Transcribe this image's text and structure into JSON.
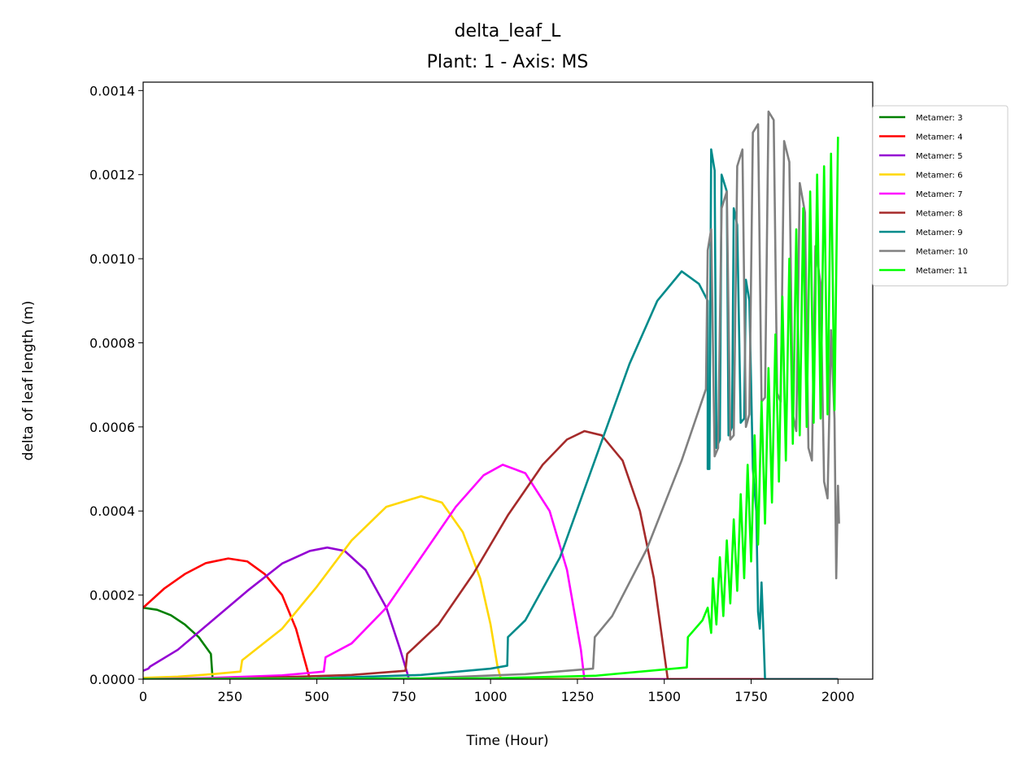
{
  "chart_data": {
    "type": "line",
    "title": "delta_leaf_L",
    "subtitle": "Plant: 1 - Axis: MS",
    "xlabel": "Time (Hour)",
    "ylabel": "delta of leaf length (m)",
    "xlim": [
      0,
      2100
    ],
    "ylim": [
      0,
      0.00142
    ],
    "xticks": [
      0,
      250,
      500,
      750,
      1000,
      1250,
      1500,
      1750,
      2000
    ],
    "xtick_labels": [
      "0",
      "250",
      "500",
      "750",
      "1000",
      "1250",
      "1500",
      "1750",
      "2000"
    ],
    "yticks": [
      0,
      0.0002,
      0.0004,
      0.0006,
      0.0008,
      0.001,
      0.0012,
      0.0014
    ],
    "ytick_labels": [
      "0.0000",
      "0.0002",
      "0.0004",
      "0.0006",
      "0.0008",
      "0.0010",
      "0.0012",
      "0.0014"
    ],
    "grid": false,
    "legend_position": "right-outside-top",
    "series": [
      {
        "name": "Metamer: 3",
        "color": "#008000",
        "points": [
          [
            0,
            0.00017
          ],
          [
            40,
            0.000165
          ],
          [
            80,
            0.000152
          ],
          [
            120,
            0.00013
          ],
          [
            160,
            0.0001
          ],
          [
            195,
            6e-05
          ],
          [
            200,
            0.0
          ],
          [
            2000,
            0.0
          ]
        ]
      },
      {
        "name": "Metamer: 4",
        "color": "#ff0000",
        "points": [
          [
            0,
            0.00017
          ],
          [
            60,
            0.000215
          ],
          [
            120,
            0.00025
          ],
          [
            180,
            0.000276
          ],
          [
            245,
            0.000287
          ],
          [
            300,
            0.00028
          ],
          [
            350,
            0.00025
          ],
          [
            400,
            0.0002
          ],
          [
            440,
            0.00012
          ],
          [
            470,
            3e-05
          ],
          [
            480,
            0.0
          ],
          [
            2000,
            0.0
          ]
        ]
      },
      {
        "name": "Metamer: 5",
        "color": "#9400d3",
        "points": [
          [
            0,
            2e-05
          ],
          [
            15,
            2.5e-05
          ],
          [
            20,
            3e-05
          ],
          [
            100,
            7e-05
          ],
          [
            200,
            0.00014
          ],
          [
            300,
            0.00021
          ],
          [
            400,
            0.000275
          ],
          [
            480,
            0.000305
          ],
          [
            530,
            0.000313
          ],
          [
            580,
            0.000305
          ],
          [
            640,
            0.00026
          ],
          [
            700,
            0.00017
          ],
          [
            740,
            7e-05
          ],
          [
            760,
            1.5e-05
          ],
          [
            765,
            0.0
          ],
          [
            2000,
            0.0
          ]
        ]
      },
      {
        "name": "Metamer: 6",
        "color": "#ffd700",
        "points": [
          [
            0,
            3e-06
          ],
          [
            100,
            6e-06
          ],
          [
            200,
            1.2e-05
          ],
          [
            280,
            1.8e-05
          ],
          [
            285,
            4.5e-05
          ],
          [
            400,
            0.00012
          ],
          [
            500,
            0.00022
          ],
          [
            600,
            0.00033
          ],
          [
            700,
            0.00041
          ],
          [
            800,
            0.000435
          ],
          [
            860,
            0.00042
          ],
          [
            920,
            0.00035
          ],
          [
            970,
            0.00024
          ],
          [
            1000,
            0.00013
          ],
          [
            1020,
            3e-05
          ],
          [
            1030,
            0.0
          ],
          [
            2000,
            0.0
          ]
        ]
      },
      {
        "name": "Metamer: 7",
        "color": "#ff00ff",
        "points": [
          [
            0,
            5e-07
          ],
          [
            200,
            3e-06
          ],
          [
            400,
            9e-06
          ],
          [
            520,
            1.8e-05
          ],
          [
            525,
            5.2e-05
          ],
          [
            600,
            8.5e-05
          ],
          [
            700,
            0.00017
          ],
          [
            800,
            0.00029
          ],
          [
            900,
            0.00041
          ],
          [
            980,
            0.000485
          ],
          [
            1035,
            0.00051
          ],
          [
            1100,
            0.00049
          ],
          [
            1170,
            0.0004
          ],
          [
            1220,
            0.00026
          ],
          [
            1260,
            7e-05
          ],
          [
            1270,
            0.0
          ],
          [
            2000,
            0.0
          ]
        ]
      },
      {
        "name": "Metamer: 8",
        "color": "#a52a2a",
        "points": [
          [
            0,
            0.0
          ],
          [
            300,
            2e-06
          ],
          [
            600,
            1e-05
          ],
          [
            755,
            2e-05
          ],
          [
            760,
            6e-05
          ],
          [
            850,
            0.00013
          ],
          [
            950,
            0.00025
          ],
          [
            1050,
            0.00039
          ],
          [
            1150,
            0.00051
          ],
          [
            1220,
            0.00057
          ],
          [
            1270,
            0.00059
          ],
          [
            1320,
            0.00058
          ],
          [
            1380,
            0.00052
          ],
          [
            1430,
            0.0004
          ],
          [
            1470,
            0.00024
          ],
          [
            1500,
            6e-05
          ],
          [
            1510,
            0.0
          ],
          [
            2000,
            0.0
          ]
        ]
      },
      {
        "name": "Metamer: 9",
        "color": "#008b8b",
        "points": [
          [
            0,
            0.0
          ],
          [
            500,
            2e-06
          ],
          [
            800,
            1e-05
          ],
          [
            1000,
            2.5e-05
          ],
          [
            1048,
            3.2e-05
          ],
          [
            1050,
            0.0001
          ],
          [
            1100,
            0.00014
          ],
          [
            1200,
            0.00029
          ],
          [
            1300,
            0.00052
          ],
          [
            1400,
            0.00075
          ],
          [
            1480,
            0.0009
          ],
          [
            1550,
            0.00097
          ],
          [
            1600,
            0.00094
          ],
          [
            1625,
            0.0009
          ],
          [
            1625,
            0.0005
          ],
          [
            1630,
            0.0005
          ],
          [
            1635,
            0.00126
          ],
          [
            1645,
            0.00121
          ],
          [
            1650,
            0.00055
          ],
          [
            1660,
            0.00057
          ],
          [
            1665,
            0.0012
          ],
          [
            1680,
            0.00116
          ],
          [
            1685,
            0.00058
          ],
          [
            1695,
            0.0006
          ],
          [
            1700,
            0.00112
          ],
          [
            1710,
            0.00108
          ],
          [
            1720,
            0.00061
          ],
          [
            1730,
            0.00062
          ],
          [
            1735,
            0.00095
          ],
          [
            1745,
            0.0009
          ],
          [
            1755,
            0.0005
          ],
          [
            1765,
            0.0004
          ],
          [
            1770,
            0.00016
          ],
          [
            1775,
            0.00012
          ],
          [
            1780,
            0.00023
          ],
          [
            1785,
            0.00012
          ],
          [
            1790,
            0.0
          ],
          [
            2000,
            0.0
          ]
        ]
      },
      {
        "name": "Metamer: 10",
        "color": "#808080",
        "points": [
          [
            0,
            0.0
          ],
          [
            800,
            2e-06
          ],
          [
            1100,
            1.2e-05
          ],
          [
            1295,
            2.5e-05
          ],
          [
            1300,
            0.0001
          ],
          [
            1350,
            0.00015
          ],
          [
            1450,
            0.00031
          ],
          [
            1550,
            0.00052
          ],
          [
            1620,
            0.00069
          ],
          [
            1625,
            0.00102
          ],
          [
            1635,
            0.00107
          ],
          [
            1645,
            0.00053
          ],
          [
            1655,
            0.00055
          ],
          [
            1665,
            0.00112
          ],
          [
            1680,
            0.00116
          ],
          [
            1690,
            0.00057
          ],
          [
            1700,
            0.00058
          ],
          [
            1710,
            0.00122
          ],
          [
            1725,
            0.00126
          ],
          [
            1735,
            0.0006
          ],
          [
            1745,
            0.00063
          ],
          [
            1755,
            0.0013
          ],
          [
            1770,
            0.00132
          ],
          [
            1780,
            0.00066
          ],
          [
            1790,
            0.00067
          ],
          [
            1800,
            0.00135
          ],
          [
            1815,
            0.00133
          ],
          [
            1825,
            0.00068
          ],
          [
            1835,
            0.00066
          ],
          [
            1845,
            0.00128
          ],
          [
            1860,
            0.00123
          ],
          [
            1870,
            0.00063
          ],
          [
            1880,
            0.00059
          ],
          [
            1890,
            0.00118
          ],
          [
            1905,
            0.00111
          ],
          [
            1915,
            0.00055
          ],
          [
            1925,
            0.00052
          ],
          [
            1935,
            0.00103
          ],
          [
            1950,
            0.00094
          ],
          [
            1960,
            0.00047
          ],
          [
            1970,
            0.00043
          ],
          [
            1980,
            0.00083
          ],
          [
            1990,
            0.00062
          ],
          [
            1995,
            0.00024
          ],
          [
            2000,
            0.00046
          ],
          [
            2003,
            0.00037
          ]
        ]
      },
      {
        "name": "Metamer: 11",
        "color": "#00ff00",
        "points": [
          [
            0,
            0.0
          ],
          [
            1000,
            2e-06
          ],
          [
            1300,
            8e-06
          ],
          [
            1565,
            2.8e-05
          ],
          [
            1568,
            0.0001
          ],
          [
            1610,
            0.00014
          ],
          [
            1625,
            0.00017
          ],
          [
            1635,
            0.00011
          ],
          [
            1640,
            0.00024
          ],
          [
            1650,
            0.00013
          ],
          [
            1660,
            0.00029
          ],
          [
            1670,
            0.00015
          ],
          [
            1680,
            0.00033
          ],
          [
            1690,
            0.00018
          ],
          [
            1700,
            0.00038
          ],
          [
            1710,
            0.00021
          ],
          [
            1720,
            0.00044
          ],
          [
            1730,
            0.00024
          ],
          [
            1740,
            0.00051
          ],
          [
            1750,
            0.00028
          ],
          [
            1760,
            0.00058
          ],
          [
            1770,
            0.00032
          ],
          [
            1780,
            0.00066
          ],
          [
            1790,
            0.00037
          ],
          [
            1800,
            0.00074
          ],
          [
            1810,
            0.00042
          ],
          [
            1820,
            0.00082
          ],
          [
            1830,
            0.00047
          ],
          [
            1840,
            0.00091
          ],
          [
            1850,
            0.00052
          ],
          [
            1860,
            0.001
          ],
          [
            1870,
            0.00056
          ],
          [
            1880,
            0.00107
          ],
          [
            1890,
            0.00058
          ],
          [
            1900,
            0.00112
          ],
          [
            1910,
            0.0006
          ],
          [
            1920,
            0.00116
          ],
          [
            1930,
            0.00061
          ],
          [
            1940,
            0.0012
          ],
          [
            1950,
            0.00062
          ],
          [
            1960,
            0.00122
          ],
          [
            1970,
            0.00063
          ],
          [
            1980,
            0.00125
          ],
          [
            1990,
            0.00064
          ],
          [
            2000,
            0.00129
          ]
        ]
      }
    ]
  }
}
